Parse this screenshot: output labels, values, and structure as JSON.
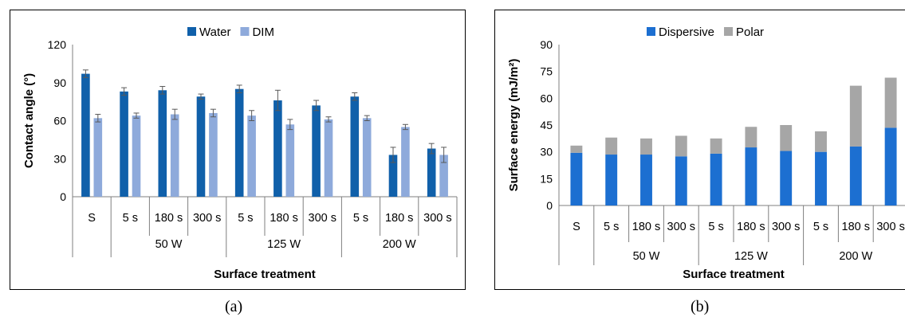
{
  "chart_data": [
    {
      "type": "bar",
      "xlabel": "Surface treatment",
      "ylabel": "Contact angle (°)",
      "ylim": [
        0,
        120
      ],
      "yticks": [
        0,
        30,
        60,
        90,
        120
      ],
      "legend_position": "top-center",
      "categories": [
        "S",
        "5 s",
        "180 s",
        "300 s",
        "5 s",
        "180 s",
        "300 s",
        "5 s",
        "180 s",
        "300 s"
      ],
      "groups": [
        {
          "label": "50 W",
          "start": 1,
          "end": 3
        },
        {
          "label": "125 W",
          "start": 4,
          "end": 6
        },
        {
          "label": "200 W",
          "start": 7,
          "end": 9
        }
      ],
      "series": [
        {
          "name": "Water",
          "color": "#1060AA",
          "values": [
            97,
            83,
            84,
            79,
            85,
            76,
            72,
            79,
            33,
            38
          ],
          "errors": [
            3,
            3,
            3,
            2,
            3,
            8,
            4,
            3,
            6,
            4
          ]
        },
        {
          "name": "DIM",
          "color": "#8EAADB",
          "values": [
            62,
            64,
            65,
            66,
            64,
            57,
            61,
            62,
            55,
            33
          ],
          "errors": [
            3,
            2,
            4,
            3,
            4,
            4,
            2,
            2,
            2,
            6
          ]
        }
      ]
    },
    {
      "type": "bar",
      "stacked": true,
      "xlabel": "Surface treatment",
      "ylabel": "Surface energy (mJ/m²)",
      "ylim": [
        0,
        90
      ],
      "yticks": [
        0,
        15,
        30,
        45,
        60,
        75,
        90
      ],
      "legend_position": "top-center",
      "categories": [
        "S",
        "5 s",
        "180 s",
        "300 s",
        "5 s",
        "180 s",
        "300 s",
        "5 s",
        "180 s",
        "300 s"
      ],
      "groups": [
        {
          "label": "50 W",
          "start": 1,
          "end": 3
        },
        {
          "label": "125 W",
          "start": 4,
          "end": 6
        },
        {
          "label": "200 W",
          "start": 7,
          "end": 9
        }
      ],
      "series": [
        {
          "name": "Dispersive",
          "color": "#1C6FD1",
          "values": [
            29.5,
            28.5,
            28.5,
            27.5,
            29,
            32.5,
            30.5,
            30,
            33,
            43.5
          ]
        },
        {
          "name": "Polar",
          "color": "#A6A6A6",
          "values": [
            4,
            9.5,
            9,
            11.5,
            8.5,
            11.5,
            14.5,
            11.5,
            34,
            28
          ]
        }
      ]
    }
  ],
  "captions": [
    "(a)",
    "(b)"
  ]
}
